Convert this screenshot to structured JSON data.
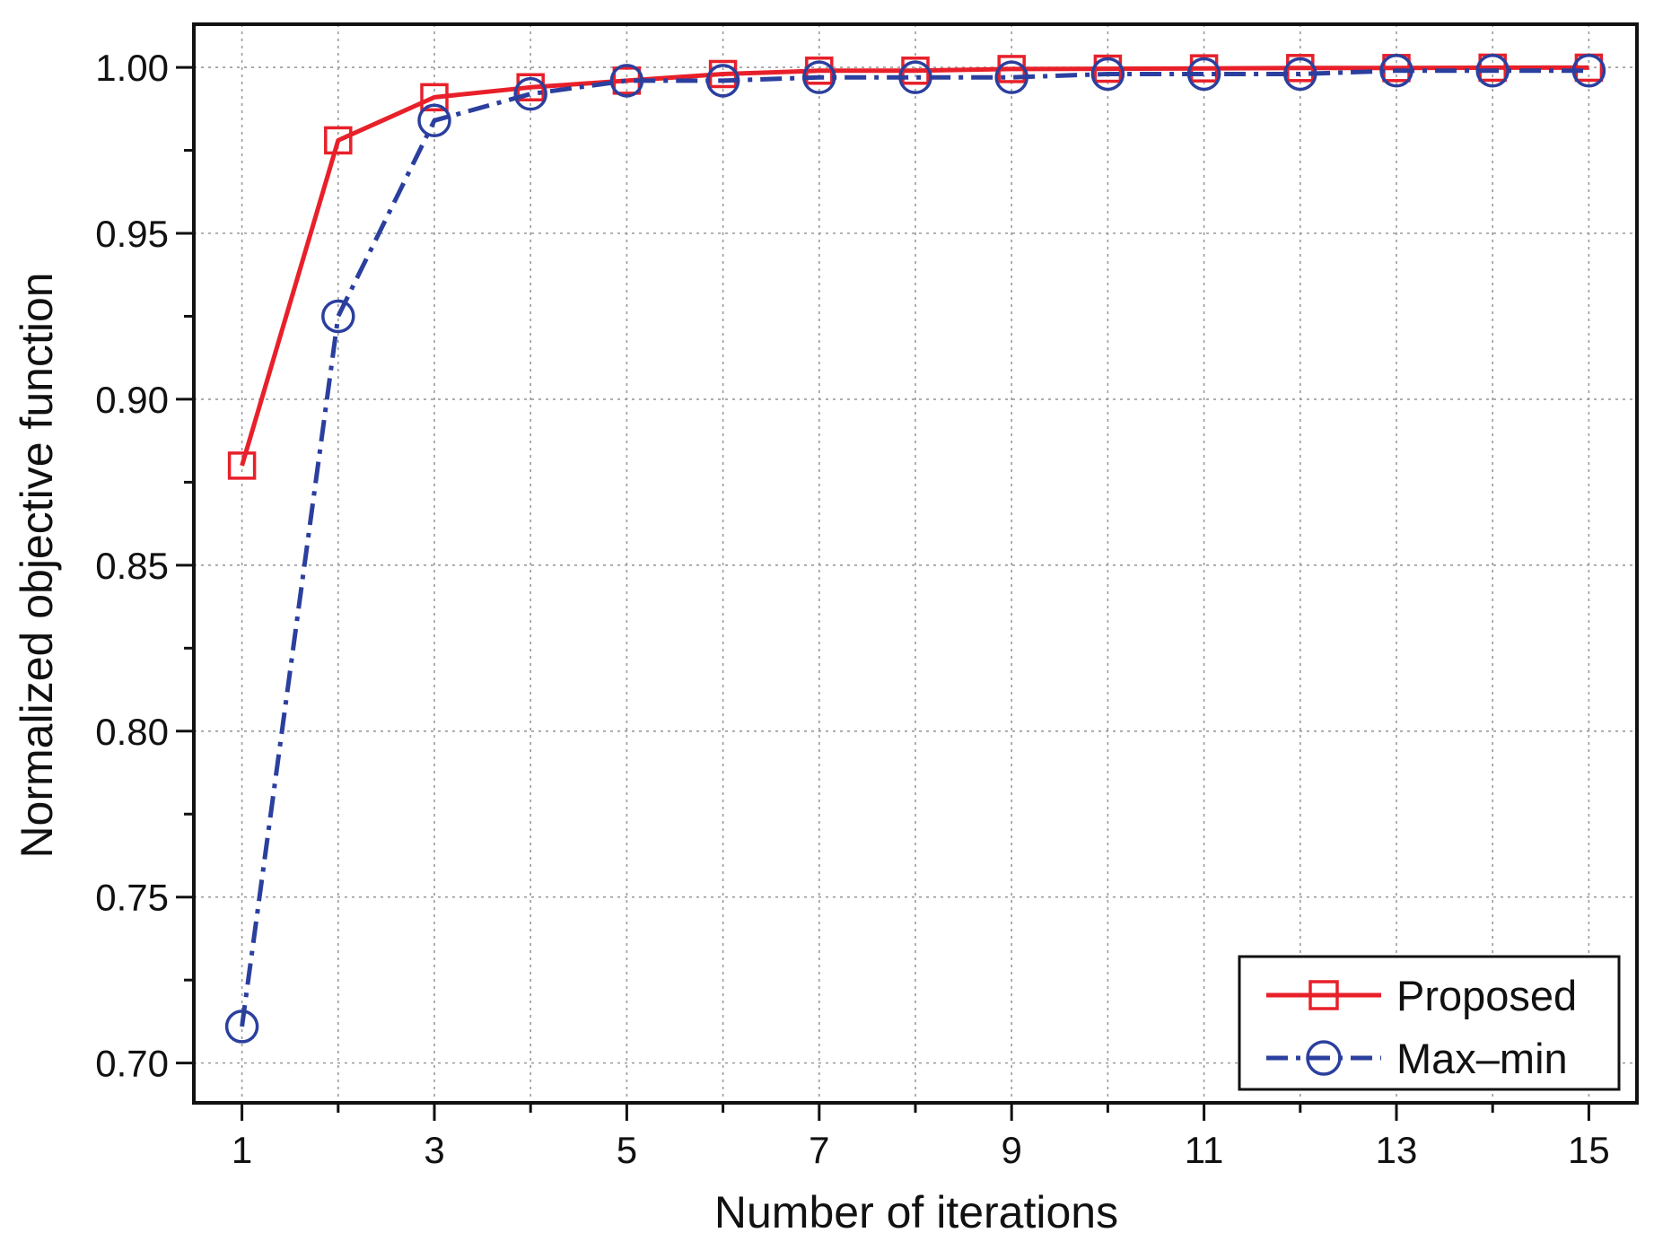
{
  "chart_data": {
    "type": "line",
    "title": "",
    "xlabel": "Number of iterations",
    "ylabel": "Normalized objective function",
    "xlim": [
      0.5,
      15.5
    ],
    "ylim": [
      0.688,
      1.013
    ],
    "x_ticks": [
      1,
      3,
      5,
      7,
      9,
      11,
      13,
      15
    ],
    "x_tick_labels": [
      "1",
      "3",
      "5",
      "7",
      "9",
      "11",
      "13",
      "15"
    ],
    "y_ticks": [
      0.7,
      0.75,
      0.8,
      0.85,
      0.9,
      0.95,
      1.0
    ],
    "y_tick_labels": [
      "0.70",
      "0.75",
      "0.80",
      "0.85",
      "0.90",
      "0.95",
      "1.00"
    ],
    "grid": true,
    "legend_position": "bottom-right",
    "x": [
      1,
      2,
      3,
      4,
      5,
      6,
      7,
      8,
      9,
      10,
      11,
      12,
      13,
      14,
      15
    ],
    "series": [
      {
        "name": "Proposed",
        "color": "#e8202a",
        "line_style": "solid",
        "marker": "square",
        "values": [
          0.88,
          0.978,
          0.991,
          0.994,
          0.996,
          0.998,
          0.999,
          0.999,
          0.9995,
          0.9996,
          0.9997,
          0.9998,
          0.9998,
          0.9999,
          0.9999
        ]
      },
      {
        "name": "Max–min",
        "color": "#2b3f9e",
        "line_style": "dash-dot",
        "marker": "circle",
        "values": [
          0.711,
          0.925,
          0.984,
          0.992,
          0.996,
          0.996,
          0.997,
          0.997,
          0.997,
          0.998,
          0.998,
          0.998,
          0.999,
          0.999,
          0.999
        ]
      }
    ]
  }
}
